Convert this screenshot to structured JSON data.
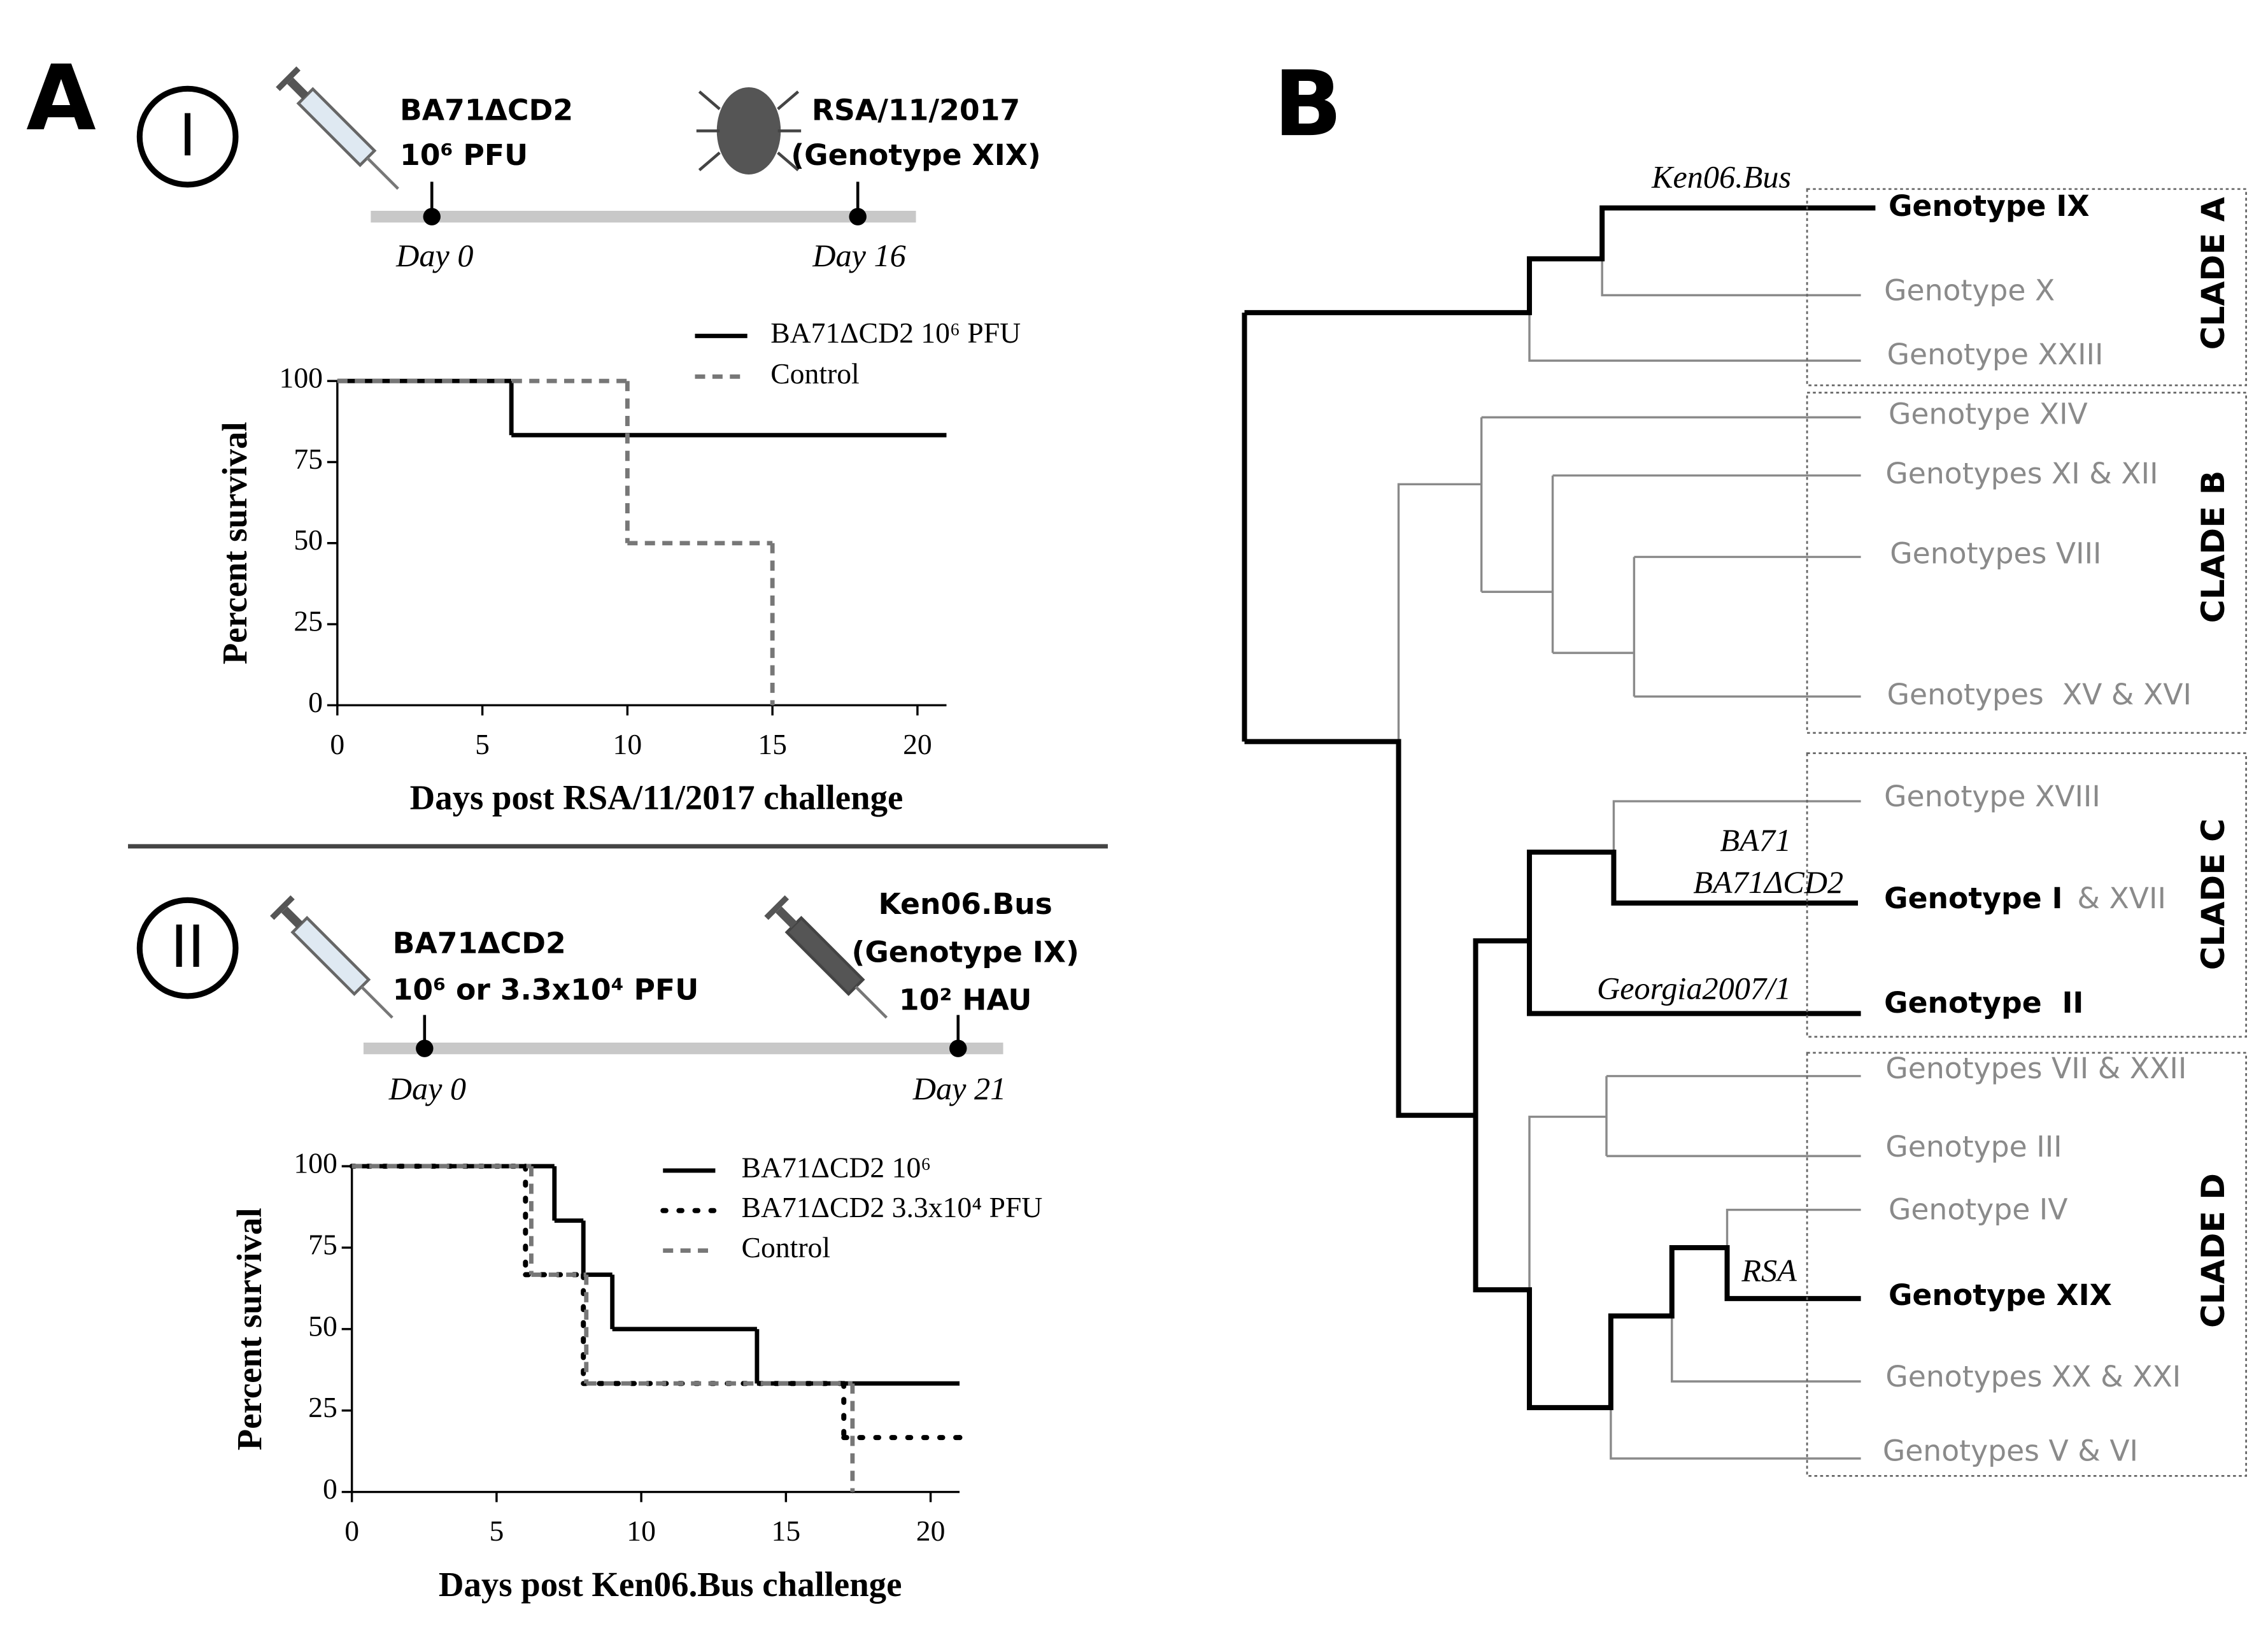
{
  "panels": {
    "a": "A",
    "b": "B",
    "i": "I",
    "ii": "II"
  },
  "timelines": [
    {
      "prime": [
        "BA71ΔCD2",
        "10⁶ PFU"
      ],
      "challenge": [
        "RSA/11/2017",
        "(Genotype XIX)"
      ],
      "days": [
        "Day 0",
        "Day 16"
      ]
    },
    {
      "prime": [
        "BA71ΔCD2",
        "10⁶ or 3.3x10⁴ PFU"
      ],
      "challenge": [
        "Ken06.Bus",
        "(Genotype IX)",
        "10² HAU"
      ],
      "days": [
        "Day 0",
        "Day 21"
      ]
    }
  ],
  "chart_data": [
    {
      "type": "line",
      "step": true,
      "ylabel": "Percent survival",
      "xlabel": "Days post RSA/11/2017 challenge",
      "xlim": [
        0,
        21
      ],
      "xticks": [
        0,
        5,
        10,
        15,
        20
      ],
      "ylim": [
        0,
        100
      ],
      "yticks": [
        0,
        25,
        50,
        75,
        100
      ],
      "series": [
        {
          "name": "BA71ΔCD2 10⁶ PFU",
          "color": "#000000",
          "style": "solid",
          "x": [
            0,
            6,
            21
          ],
          "values": [
            100,
            83.3,
            83.3
          ]
        },
        {
          "name": "Control",
          "color": "#777777",
          "style": "dashed",
          "x": [
            0,
            10,
            15
          ],
          "values": [
            100,
            50,
            0
          ]
        }
      ]
    },
    {
      "type": "line",
      "step": true,
      "ylabel": "Percent survival",
      "xlabel": "Days post Ken06.Bus challenge",
      "xlim": [
        0,
        21
      ],
      "xticks": [
        0,
        5,
        10,
        15,
        20
      ],
      "ylim": [
        0,
        100
      ],
      "yticks": [
        0,
        25,
        50,
        75,
        100
      ],
      "series": [
        {
          "name": "BA71ΔCD2 10⁶",
          "color": "#000000",
          "style": "solid",
          "x": [
            0,
            7,
            8,
            9,
            14,
            21
          ],
          "values": [
            100,
            83.3,
            66.7,
            50,
            33.3,
            33.3
          ]
        },
        {
          "name": "BA71ΔCD2 3.3x10⁴ PFU",
          "color": "#000000",
          "style": "dotted",
          "x": [
            0,
            6,
            8,
            17,
            21
          ],
          "values": [
            100,
            66.7,
            33.3,
            16.7,
            16.7
          ]
        },
        {
          "name": "Control",
          "color": "#777777",
          "style": "dashed",
          "x": [
            0,
            6.2,
            8.1,
            17.3
          ],
          "values": [
            100,
            66.7,
            33.3,
            0
          ]
        }
      ]
    }
  ],
  "tree": {
    "leaves": [
      {
        "label": "Genotype IX",
        "bold": true
      },
      {
        "label": "Genotype X"
      },
      {
        "label": "Genotype XXIII"
      },
      {
        "label": "Genotype XIV"
      },
      {
        "label": "Genotypes XI & XII"
      },
      {
        "label": "Genotypes VIII"
      },
      {
        "label": "Genotypes  XV & XVI"
      },
      {
        "label": "Genotype XVIII"
      },
      {
        "label": "Genotype I",
        "bold": true,
        "suffix": "& XVII"
      },
      {
        "label": "Genotype  II",
        "bold": true
      },
      {
        "label": "Genotypes VII & XXII"
      },
      {
        "label": "Genotype III"
      },
      {
        "label": "Genotype IV"
      },
      {
        "label": "Genotype XIX",
        "bold": true
      },
      {
        "label": "Genotypes XX & XXI"
      },
      {
        "label": "Genotypes V & VI"
      }
    ],
    "strains": [
      "Ken06.Bus",
      "BA71",
      "BA71ΔCD2",
      "Georgia2007/1",
      "RSA"
    ],
    "clades": [
      "CLADE A",
      "CLADE B",
      "CLADE C",
      "CLADE D"
    ]
  }
}
